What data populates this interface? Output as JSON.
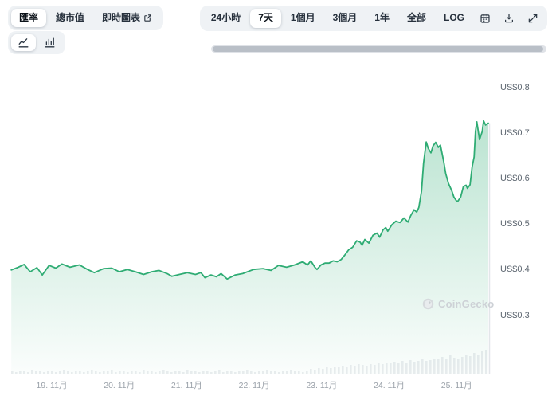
{
  "header": {
    "tabs": [
      {
        "label": "匯率",
        "active": true
      },
      {
        "label": "總市值",
        "active": false
      },
      {
        "label": "即時圖表",
        "active": false,
        "icon": "external-link-icon"
      }
    ],
    "chart_type_toggle": [
      {
        "name": "line-chart",
        "active": true
      },
      {
        "name": "bar-chart",
        "active": false
      }
    ],
    "range_buttons": [
      {
        "label": "24小時",
        "active": false
      },
      {
        "label": "7天",
        "active": true
      },
      {
        "label": "1個月",
        "active": false
      },
      {
        "label": "3個月",
        "active": false
      },
      {
        "label": "1年",
        "active": false
      },
      {
        "label": "全部",
        "active": false
      },
      {
        "label": "LOG",
        "active": false
      }
    ],
    "icon_buttons": [
      "calendar-icon",
      "download-icon",
      "expand-icon"
    ]
  },
  "chart_data": {
    "type": "area",
    "title": "",
    "currency": "US$",
    "line_color": "#2fac74",
    "y_axis": {
      "labels": [
        "US$0.8",
        "US$0.7",
        "US$0.6",
        "US$0.5",
        "US$0.4",
        "US$0.3"
      ],
      "max": 0.8,
      "min": 0.3,
      "grid": false,
      "side": "right"
    },
    "x_axis": {
      "labels": [
        "19. 11月",
        "20. 11月",
        "21. 11月",
        "22. 11月",
        "23. 11月",
        "24. 11月",
        "25. 11月"
      ]
    },
    "watermark": "CoinGecko",
    "series": [
      {
        "name": "price",
        "points": [
          [
            18.4,
            0.4
          ],
          [
            18.49,
            0.405
          ],
          [
            18.59,
            0.412
          ],
          [
            18.68,
            0.396
          ],
          [
            18.78,
            0.405
          ],
          [
            18.86,
            0.389
          ],
          [
            18.96,
            0.41
          ],
          [
            19.06,
            0.404
          ],
          [
            19.15,
            0.413
          ],
          [
            19.27,
            0.406
          ],
          [
            19.41,
            0.411
          ],
          [
            19.53,
            0.401
          ],
          [
            19.63,
            0.394
          ],
          [
            19.77,
            0.403
          ],
          [
            19.89,
            0.404
          ],
          [
            20.0,
            0.396
          ],
          [
            20.12,
            0.401
          ],
          [
            20.24,
            0.396
          ],
          [
            20.36,
            0.39
          ],
          [
            20.48,
            0.396
          ],
          [
            20.59,
            0.399
          ],
          [
            20.71,
            0.392
          ],
          [
            20.78,
            0.386
          ],
          [
            20.89,
            0.39
          ],
          [
            21.01,
            0.394
          ],
          [
            21.13,
            0.39
          ],
          [
            21.21,
            0.394
          ],
          [
            21.27,
            0.383
          ],
          [
            21.36,
            0.389
          ],
          [
            21.44,
            0.385
          ],
          [
            21.51,
            0.392
          ],
          [
            21.6,
            0.38
          ],
          [
            21.72,
            0.389
          ],
          [
            21.83,
            0.392
          ],
          [
            21.99,
            0.401
          ],
          [
            22.13,
            0.403
          ],
          [
            22.25,
            0.399
          ],
          [
            22.36,
            0.41
          ],
          [
            22.48,
            0.406
          ],
          [
            22.6,
            0.411
          ],
          [
            22.72,
            0.418
          ],
          [
            22.79,
            0.411
          ],
          [
            22.84,
            0.42
          ],
          [
            22.9,
            0.406
          ],
          [
            22.93,
            0.401
          ],
          [
            22.99,
            0.411
          ],
          [
            23.05,
            0.415
          ],
          [
            23.11,
            0.415
          ],
          [
            23.17,
            0.42
          ],
          [
            23.23,
            0.418
          ],
          [
            23.29,
            0.423
          ],
          [
            23.34,
            0.432
          ],
          [
            23.4,
            0.444
          ],
          [
            23.46,
            0.45
          ],
          [
            23.52,
            0.464
          ],
          [
            23.57,
            0.461
          ],
          [
            23.6,
            0.454
          ],
          [
            23.64,
            0.467
          ],
          [
            23.7,
            0.459
          ],
          [
            23.76,
            0.476
          ],
          [
            23.82,
            0.481
          ],
          [
            23.86,
            0.472
          ],
          [
            23.91,
            0.488
          ],
          [
            23.95,
            0.493
          ],
          [
            23.98,
            0.485
          ],
          [
            24.04,
            0.499
          ],
          [
            24.1,
            0.507
          ],
          [
            24.16,
            0.504
          ],
          [
            24.22,
            0.514
          ],
          [
            24.28,
            0.505
          ],
          [
            24.32,
            0.519
          ],
          [
            24.37,
            0.532
          ],
          [
            24.41,
            0.527
          ],
          [
            24.44,
            0.537
          ],
          [
            24.48,
            0.573
          ],
          [
            24.51,
            0.634
          ],
          [
            24.55,
            0.681
          ],
          [
            24.58,
            0.667
          ],
          [
            24.62,
            0.657
          ],
          [
            24.65,
            0.672
          ],
          [
            24.69,
            0.68
          ],
          [
            24.73,
            0.669
          ],
          [
            24.76,
            0.674
          ],
          [
            24.81,
            0.637
          ],
          [
            24.84,
            0.611
          ],
          [
            24.88,
            0.59
          ],
          [
            24.93,
            0.573
          ],
          [
            24.96,
            0.56
          ],
          [
            25.0,
            0.551
          ],
          [
            25.02,
            0.551
          ],
          [
            25.06,
            0.56
          ],
          [
            25.1,
            0.583
          ],
          [
            25.14,
            0.586
          ],
          [
            25.16,
            0.579
          ],
          [
            25.2,
            0.587
          ],
          [
            25.23,
            0.626
          ],
          [
            25.26,
            0.648
          ],
          [
            25.28,
            0.704
          ],
          [
            25.3,
            0.725
          ],
          [
            25.34,
            0.686
          ],
          [
            25.38,
            0.704
          ],
          [
            25.4,
            0.727
          ],
          [
            25.43,
            0.718
          ],
          [
            25.47,
            0.722
          ]
        ]
      }
    ],
    "volume_bars": [
      4,
      3,
      5,
      4,
      3,
      6,
      4,
      5,
      3,
      4,
      5,
      3,
      4,
      6,
      4,
      3,
      5,
      4,
      3,
      5,
      6,
      4,
      3,
      5,
      4,
      6,
      3,
      4,
      5,
      3,
      4,
      5,
      3,
      6,
      4,
      5,
      3,
      4,
      6,
      4,
      3,
      5,
      4,
      3,
      6,
      4,
      5,
      3,
      4,
      5,
      3,
      4,
      6,
      3,
      5,
      4,
      3,
      5,
      4,
      6,
      4,
      3,
      5,
      4,
      6,
      5,
      4,
      3,
      5,
      4,
      6,
      4,
      5,
      3,
      4,
      7,
      6,
      8,
      7,
      9,
      8,
      10,
      9,
      11,
      10,
      12,
      11,
      13,
      12,
      11,
      13,
      12,
      14,
      13,
      15,
      14,
      16,
      15,
      17,
      15,
      18,
      16,
      17,
      19,
      17,
      18,
      20,
      19,
      22,
      20,
      24,
      21,
      19,
      22,
      25,
      23,
      27,
      25,
      29,
      31
    ]
  }
}
